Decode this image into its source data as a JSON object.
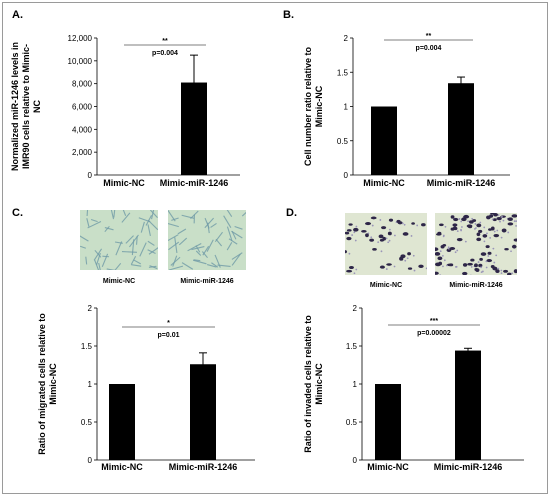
{
  "chart_data": [
    {
      "panel": "A.",
      "type": "bar",
      "categories": [
        "Mimic-NC",
        "Mimic-miR-1246"
      ],
      "values": [
        0,
        8100
      ],
      "errors": [
        0,
        2400
      ],
      "ylabel_lines": [
        "Normalized miR-1246 levels in",
        "IMR90 cells relative to Mimic-",
        "NC"
      ],
      "ylim": [
        0,
        12000
      ],
      "yticks": [
        "0",
        "2,000",
        "4,000",
        "6,000",
        "8,000",
        "10,000",
        "12,000"
      ],
      "significance": "**",
      "pvalue": "p=0.004"
    },
    {
      "panel": "B.",
      "type": "bar",
      "categories": [
        "Mimic-NC",
        "Mimic-miR-1246"
      ],
      "values": [
        1.0,
        1.34
      ],
      "errors": [
        0,
        0.09
      ],
      "ylabel_lines": [
        "Cell number ratio relative to",
        "Mimic-NC"
      ],
      "ylim": [
        0,
        2
      ],
      "yticks": [
        "0",
        "0.5",
        "1",
        "1.5",
        "2"
      ],
      "significance": "**",
      "pvalue": "p=0.004"
    },
    {
      "panel": "C.",
      "type": "bar",
      "categories": [
        "Mimic-NC",
        "Mimic-miR-1246"
      ],
      "values": [
        1.0,
        1.26
      ],
      "errors": [
        0,
        0.15
      ],
      "ylabel_lines": [
        "Ratio of migrated cells relative to",
        "Mimic-NC"
      ],
      "ylim": [
        0,
        2
      ],
      "yticks": [
        "0",
        "0.5",
        "1",
        "1.5",
        "2"
      ],
      "significance": "*",
      "pvalue": "p=0.01",
      "image_captions": [
        "Mimic-NC",
        "Mimic-miR-1246"
      ]
    },
    {
      "panel": "D.",
      "type": "bar",
      "categories": [
        "Mimic-NC",
        "Mimic-miR-1246"
      ],
      "values": [
        1.0,
        1.44
      ],
      "errors": [
        0,
        0.03
      ],
      "ylabel_lines": [
        "Ratio of invaded cells relative to",
        "Mimic-NC"
      ],
      "ylim": [
        0,
        2
      ],
      "yticks": [
        "0",
        "0.5",
        "1",
        "1.5",
        "2"
      ],
      "significance": "***",
      "pvalue": "p=0.00002",
      "image_captions": [
        "Mimic-NC",
        "Mimic-miR-1246"
      ]
    }
  ],
  "colors": {
    "bar": "#000000",
    "error": "#000000",
    "migration_bg": "#c9dfc8",
    "migration_cell": "#6f9aa6",
    "invasion_bg": "#dfe6d2",
    "invasion_cell": "#2e2648"
  }
}
